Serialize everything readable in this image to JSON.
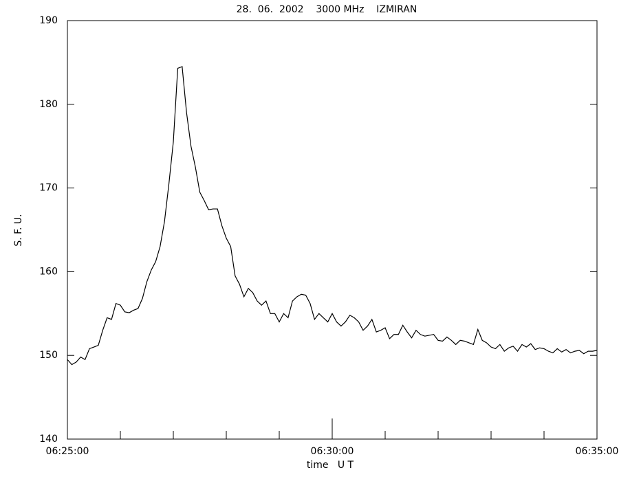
{
  "chart_data": {
    "type": "line",
    "title": "28.  06.  2002    3000 MHz    IZMIRAN",
    "x_label": "time   U T",
    "y_label": "S. F. U.",
    "color": "#000000",
    "xlim": [
      "06:25:00",
      "06:35:00"
    ],
    "xticks": [
      "06:25:00",
      "06:30:00",
      "06:35:00"
    ],
    "xminor_ticks": [
      "06:26:00",
      "06:27:00",
      "06:28:00",
      "06:29:00",
      "06:31:00",
      "06:32:00",
      "06:33:00",
      "06:34:00"
    ],
    "ylim": [
      140,
      190
    ],
    "yticks": [
      140,
      150,
      160,
      170,
      180,
      190
    ],
    "x": [
      "06:25:00",
      "06:25:05",
      "06:25:10",
      "06:25:15",
      "06:25:20",
      "06:25:25",
      "06:25:30",
      "06:25:35",
      "06:25:40",
      "06:25:45",
      "06:25:50",
      "06:25:55",
      "06:26:00",
      "06:26:05",
      "06:26:10",
      "06:26:15",
      "06:26:20",
      "06:26:25",
      "06:26:30",
      "06:26:35",
      "06:26:40",
      "06:26:45",
      "06:26:50",
      "06:26:55",
      "06:27:00",
      "06:27:05",
      "06:27:10",
      "06:27:15",
      "06:27:20",
      "06:27:25",
      "06:27:30",
      "06:27:35",
      "06:27:40",
      "06:27:45",
      "06:27:50",
      "06:27:55",
      "06:28:00",
      "06:28:05",
      "06:28:10",
      "06:28:15",
      "06:28:20",
      "06:28:25",
      "06:28:30",
      "06:28:35",
      "06:28:40",
      "06:28:45",
      "06:28:50",
      "06:28:55",
      "06:29:00",
      "06:29:05",
      "06:29:10",
      "06:29:15",
      "06:29:20",
      "06:29:25",
      "06:29:30",
      "06:29:35",
      "06:29:40",
      "06:29:45",
      "06:29:50",
      "06:29:55",
      "06:30:00",
      "06:30:05",
      "06:30:10",
      "06:30:15",
      "06:30:20",
      "06:30:25",
      "06:30:30",
      "06:30:35",
      "06:30:40",
      "06:30:45",
      "06:30:50",
      "06:30:55",
      "06:31:00",
      "06:31:05",
      "06:31:10",
      "06:31:15",
      "06:31:20",
      "06:31:25",
      "06:31:30",
      "06:31:35",
      "06:31:40",
      "06:31:45",
      "06:31:50",
      "06:31:55",
      "06:32:00",
      "06:32:05",
      "06:32:10",
      "06:32:15",
      "06:32:20",
      "06:32:25",
      "06:32:30",
      "06:32:35",
      "06:32:40",
      "06:32:45",
      "06:32:50",
      "06:32:55",
      "06:33:00",
      "06:33:05",
      "06:33:10",
      "06:33:15",
      "06:33:20",
      "06:33:25",
      "06:33:30",
      "06:33:35",
      "06:33:40",
      "06:33:45",
      "06:33:50",
      "06:33:55",
      "06:34:00",
      "06:34:05",
      "06:34:10",
      "06:34:15",
      "06:34:20",
      "06:34:25",
      "06:34:30",
      "06:34:35",
      "06:34:40",
      "06:34:45",
      "06:34:50",
      "06:34:55",
      "06:35:00"
    ],
    "values": [
      149.5,
      148.9,
      149.2,
      149.8,
      149.5,
      150.8,
      151,
      151.2,
      153,
      154.5,
      154.3,
      156.2,
      156,
      155.2,
      155.1,
      155.4,
      155.6,
      156.8,
      158.8,
      160.2,
      161.2,
      163,
      166,
      170.5,
      175.5,
      184.3,
      184.5,
      179,
      175,
      172.5,
      169.5,
      168.5,
      167.4,
      167.5,
      167.5,
      165.5,
      164,
      163,
      159.5,
      158.5,
      157,
      158,
      157.5,
      156.5,
      156,
      156.5,
      155,
      155,
      154,
      155,
      154.5,
      156.5,
      157,
      157.3,
      157.2,
      156.2,
      154.3,
      155,
      154.5,
      154,
      155,
      154,
      153.5,
      154,
      154.8,
      154.5,
      154,
      153,
      153.5,
      154.3,
      152.8,
      153,
      153.3,
      152,
      152.5,
      152.5,
      153.6,
      152.8,
      152.1,
      153,
      152.5,
      152.3,
      152.4,
      152.5,
      151.8,
      151.7,
      152.2,
      151.8,
      151.3,
      151.8,
      151.7,
      151.5,
      151.3,
      153.1,
      151.8,
      151.5,
      151,
      150.8,
      151.3,
      150.5,
      150.9,
      151.1,
      150.5,
      151.3,
      151,
      151.4,
      150.7,
      150.9,
      150.8,
      150.5,
      150.3,
      150.8,
      150.4,
      150.7,
      150.3,
      150.5,
      150.6,
      150.2,
      150.5,
      150.5,
      150.6
    ]
  }
}
